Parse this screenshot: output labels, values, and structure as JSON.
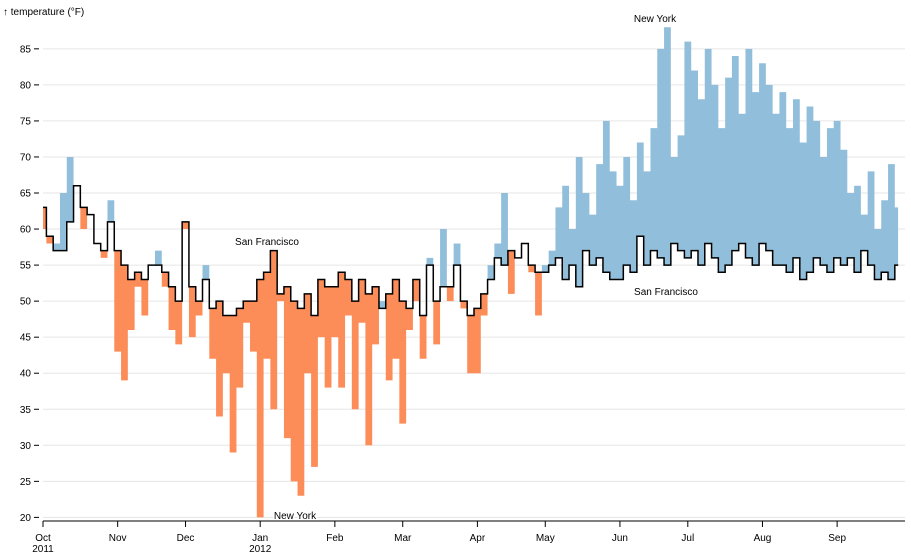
{
  "chart_data": {
    "type": "difference",
    "y_label": "↑ temperature (°F)",
    "categories": [
      "Oct",
      "Nov",
      "Dec",
      "Jan",
      "Feb",
      "Mar",
      "Apr",
      "May",
      "Jun",
      "Jul",
      "Aug",
      "Sep"
    ],
    "category_sublabels": [
      "2011",
      null,
      null,
      "2012",
      null,
      null,
      null,
      null,
      null,
      null,
      null,
      null
    ],
    "series": [
      {
        "name": "New York",
        "values": [
          [
            60,
            58,
            58,
            65,
            70,
            66,
            60,
            62,
            58,
            56,
            64
          ],
          [
            43,
            39,
            46,
            52,
            48,
            55,
            57,
            52,
            46,
            44
          ],
          [
            60,
            45,
            48,
            55,
            42,
            34,
            40,
            29,
            38,
            47,
            43
          ],
          [
            20,
            42,
            35,
            50,
            31,
            25,
            23,
            40,
            27,
            45,
            38
          ],
          [
            45,
            38,
            48,
            35,
            47,
            30,
            44,
            50,
            39,
            42
          ],
          [
            33,
            46,
            50,
            42,
            56,
            44,
            60,
            50,
            58,
            49,
            40
          ],
          [
            40,
            48,
            55,
            58,
            65,
            51,
            56,
            58,
            54,
            48
          ],
          [
            55,
            57,
            63,
            66,
            60,
            70,
            65,
            62,
            69,
            75,
            68
          ],
          [
            66,
            70,
            64,
            72,
            68,
            74,
            85,
            88,
            70,
            73
          ],
          [
            86,
            82,
            78,
            85,
            80,
            74,
            81,
            84,
            76,
            85,
            79
          ],
          [
            83,
            80,
            76,
            79,
            74,
            78,
            72,
            77,
            75,
            70,
            74
          ],
          [
            75,
            71,
            65,
            66,
            62,
            68,
            60,
            64,
            69,
            63
          ]
        ]
      },
      {
        "name": "San Francisco",
        "values": [
          [
            63,
            59,
            57,
            57,
            61,
            66,
            63,
            62,
            58,
            57,
            61
          ],
          [
            57,
            55,
            53,
            54,
            53,
            55,
            55,
            54,
            52,
            50
          ],
          [
            61,
            52,
            50,
            53,
            49,
            50,
            48,
            48,
            49,
            50,
            50
          ],
          [
            53,
            54,
            57,
            51,
            52,
            50,
            49,
            51,
            48,
            53,
            52
          ],
          [
            52,
            54,
            53,
            50,
            53,
            51,
            52,
            49,
            51,
            53
          ],
          [
            50,
            49,
            53,
            48,
            55,
            50,
            52,
            52,
            55,
            50,
            48
          ],
          [
            49,
            51,
            53,
            56,
            55,
            57,
            56,
            58,
            55,
            54
          ],
          [
            54,
            55,
            56,
            53,
            55,
            52,
            57,
            55,
            56,
            54,
            53
          ],
          [
            53,
            55,
            54,
            59,
            55,
            57,
            56,
            55,
            58,
            57
          ],
          [
            56,
            57,
            55,
            58,
            56,
            54,
            55,
            57,
            58,
            56,
            55
          ],
          [
            58,
            57,
            55,
            55,
            54,
            56,
            53,
            54,
            56,
            55,
            54
          ],
          [
            56,
            55,
            56,
            54,
            57,
            55,
            53,
            54,
            53,
            55
          ]
        ]
      }
    ],
    "above_color": "#91bfdb",
    "below_color": "#fc8d59",
    "line_color": "#000000",
    "annotations": [
      "New York",
      "San Francisco",
      "New York",
      "San Francisco"
    ],
    "ylim": [
      19.5,
      89
    ],
    "yticks": [
      20,
      25,
      30,
      35,
      40,
      45,
      50,
      55,
      60,
      65,
      70,
      75,
      80,
      85
    ],
    "grid": true
  }
}
